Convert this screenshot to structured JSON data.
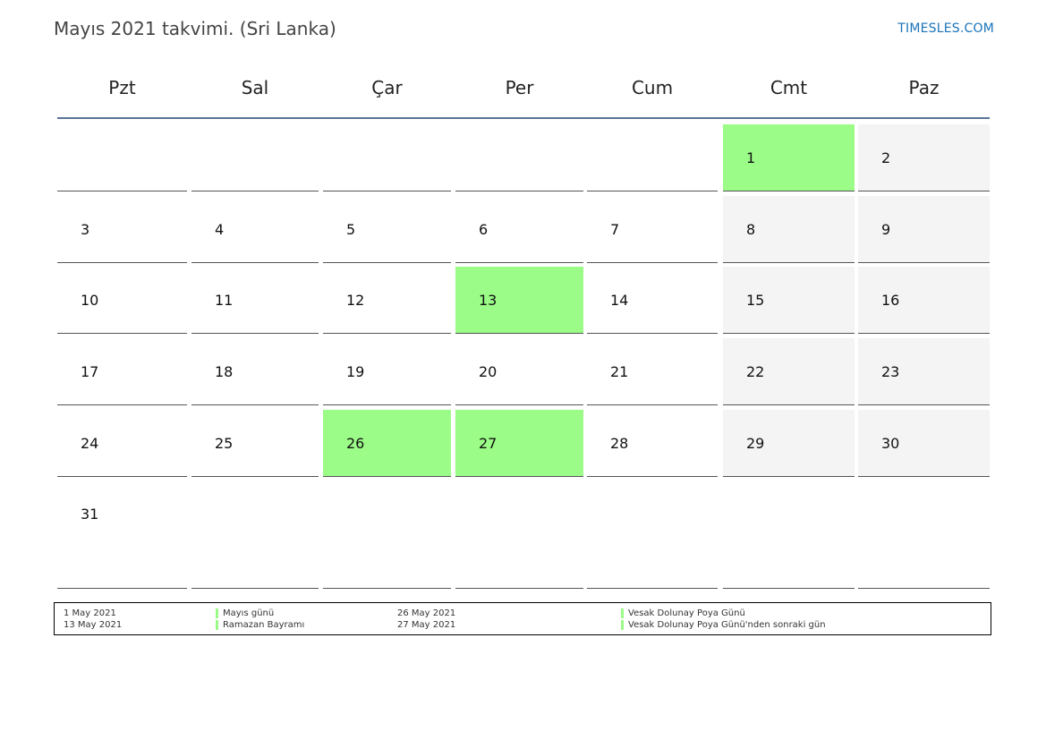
{
  "title": "Mayıs 2021 takvimi. (Sri Lanka)",
  "site": "TIMESLES.COM",
  "colors": {
    "holiday": "#9bfc87",
    "weekend": "#f4f4f4",
    "header_line": "#5b7598",
    "link": "#1a73b8"
  },
  "weekdays": [
    "Pzt",
    "Sal",
    "Çar",
    "Per",
    "Cum",
    "Cmt",
    "Paz"
  ],
  "weeks": [
    [
      "",
      "",
      "",
      "",
      "",
      "1",
      "2"
    ],
    [
      "3",
      "4",
      "5",
      "6",
      "7",
      "8",
      "9"
    ],
    [
      "10",
      "11",
      "12",
      "13",
      "14",
      "15",
      "16"
    ],
    [
      "17",
      "18",
      "19",
      "20",
      "21",
      "22",
      "23"
    ],
    [
      "24",
      "25",
      "26",
      "27",
      "28",
      "29",
      "30"
    ],
    [
      "31",
      "",
      "",
      "",
      "",
      "",
      ""
    ]
  ],
  "holiday_days": [
    "1",
    "13",
    "26",
    "27"
  ],
  "legend": [
    {
      "date": "1 May 2021",
      "name": "Mayıs günü"
    },
    {
      "date": "13 May 2021",
      "name": "Ramazan Bayramı"
    },
    {
      "date": "26 May 2021",
      "name": "Vesak Dolunay Poya Günü"
    },
    {
      "date": "27 May 2021",
      "name": "Vesak Dolunay Poya Günü'nden sonraki gün"
    }
  ]
}
